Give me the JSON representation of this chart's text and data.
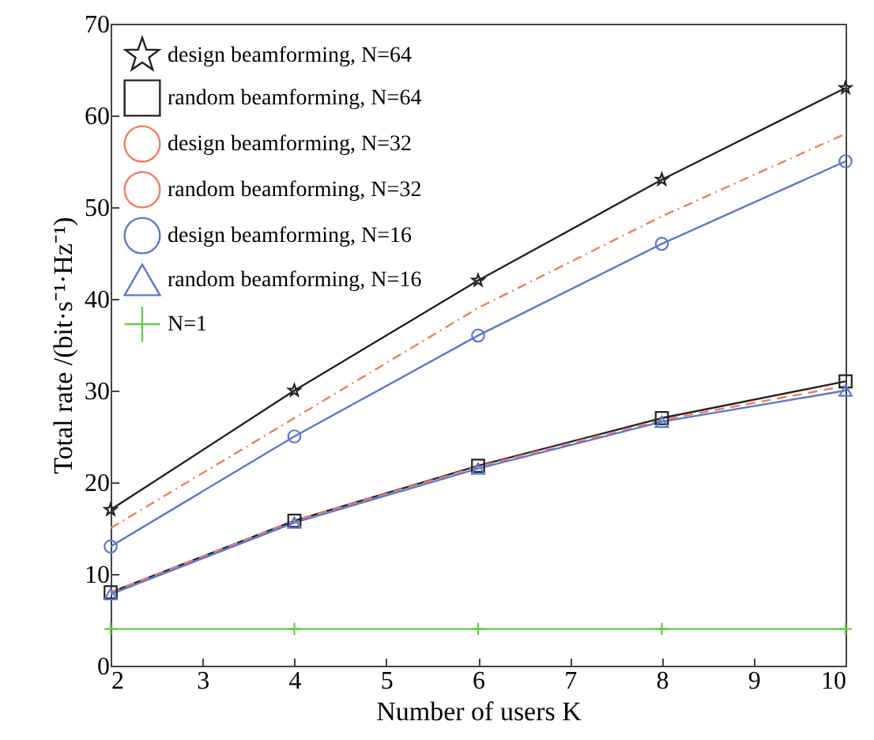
{
  "chart_data": {
    "type": "line",
    "xlabel": "Number of users K",
    "ylabel": "Total rate /(bit·s⁻¹·Hz⁻¹)",
    "x": [
      2,
      4,
      6,
      8,
      10
    ],
    "xlim": [
      2,
      10
    ],
    "xticks": [
      2,
      3,
      4,
      5,
      6,
      7,
      8,
      9,
      10
    ],
    "ylim": [
      0,
      70
    ],
    "yticks": [
      0,
      10,
      20,
      30,
      40,
      50,
      60,
      70
    ],
    "grid": false,
    "legend": "top left",
    "series": [
      {
        "name": "design beamforming, N=64",
        "color": "#222222",
        "marker": "star",
        "line_style": "solid",
        "values": [
          17,
          30,
          42,
          53,
          63
        ]
      },
      {
        "name": "random beamforming, N=64",
        "color": "#222222",
        "marker": "square",
        "line_style": "solid",
        "values": [
          8,
          15.8,
          21.8,
          27,
          31
        ]
      },
      {
        "name": "design beamforming, N=32",
        "color": "#f47c5c",
        "marker": "none",
        "line_style": "dashdot",
        "values": [
          15,
          27,
          39,
          49,
          58
        ]
      },
      {
        "name": "random beamforming, N=32",
        "color": "#f47c5c",
        "marker": "none",
        "line_style": "dashed",
        "values": [
          8,
          15.8,
          21.7,
          26.8,
          30.5
        ]
      },
      {
        "name": "design beamforming, N=16",
        "color": "#5b78d0",
        "marker": "circle",
        "line_style": "solid",
        "values": [
          13,
          25,
          36,
          46,
          55
        ]
      },
      {
        "name": "random beamforming, N=16",
        "color": "#5b78d0",
        "marker": "triangle",
        "line_style": "solid",
        "values": [
          7.8,
          15.6,
          21.5,
          26.6,
          30
        ]
      },
      {
        "name": "N=1",
        "color": "#66cc44",
        "marker": "cross",
        "line_style": "solid",
        "values": [
          4,
          4,
          4,
          4,
          4
        ]
      }
    ]
  }
}
